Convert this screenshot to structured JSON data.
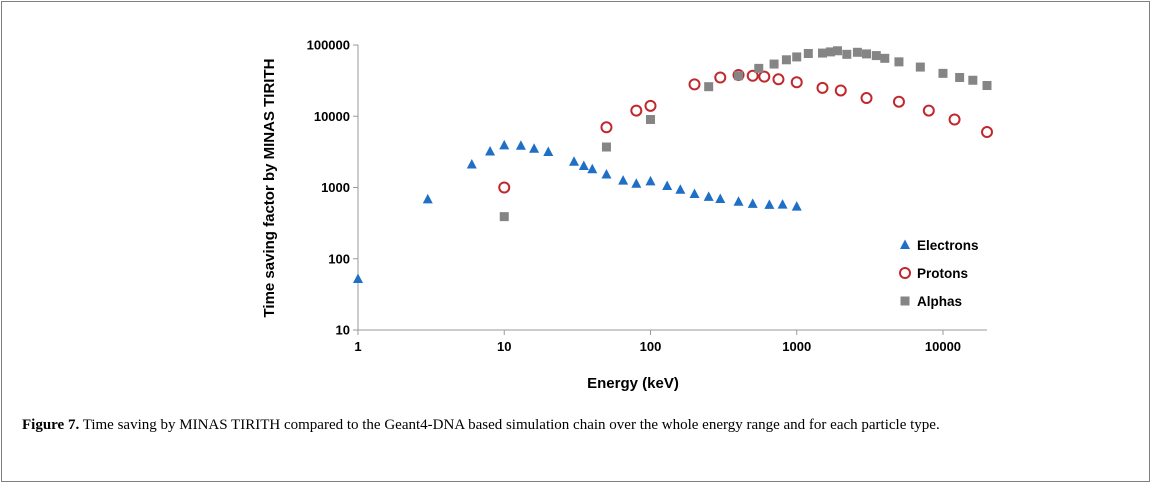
{
  "caption": {
    "label": "Figure 7.",
    "text": " Time saving by MINAS TIRITH compared to the Geant4-DNA based simulation chain over the whole energy range and for each particle type."
  },
  "chart_data": {
    "type": "scatter",
    "xlabel": "Energy (keV)",
    "ylabel": "Time saving factor by MINAS TIRITH",
    "xscale": "log",
    "yscale": "log",
    "xlim": [
      1,
      20000
    ],
    "ylim": [
      10,
      100000
    ],
    "x_ticks": [
      "1",
      "10",
      "100",
      "1000",
      "10000"
    ],
    "y_ticks": [
      "10",
      "100",
      "1000",
      "10000",
      "100000"
    ],
    "grid": false,
    "legend_position": "right",
    "series": [
      {
        "name": "Electrons",
        "marker": "triangle",
        "color": "#1f6fc5",
        "points": [
          [
            1,
            52
          ],
          [
            3,
            680
          ],
          [
            6,
            2100
          ],
          [
            8,
            3200
          ],
          [
            10,
            3900
          ],
          [
            13,
            3850
          ],
          [
            16,
            3500
          ],
          [
            20,
            3150
          ],
          [
            30,
            2300
          ],
          [
            35,
            2000
          ],
          [
            40,
            1800
          ],
          [
            50,
            1520
          ],
          [
            65,
            1250
          ],
          [
            80,
            1130
          ],
          [
            100,
            1220
          ],
          [
            130,
            1050
          ],
          [
            160,
            930
          ],
          [
            200,
            810
          ],
          [
            250,
            740
          ],
          [
            300,
            690
          ],
          [
            400,
            630
          ],
          [
            500,
            590
          ],
          [
            650,
            570
          ],
          [
            800,
            575
          ],
          [
            1000,
            540
          ]
        ]
      },
      {
        "name": "Protons",
        "marker": "open-circle",
        "color": "#c0282d",
        "points": [
          [
            10,
            1000
          ],
          [
            50,
            7000
          ],
          [
            80,
            12000
          ],
          [
            100,
            14000
          ],
          [
            200,
            28000
          ],
          [
            300,
            35000
          ],
          [
            400,
            38000
          ],
          [
            500,
            37000
          ],
          [
            600,
            36000
          ],
          [
            750,
            33000
          ],
          [
            1000,
            30000
          ],
          [
            1500,
            25000
          ],
          [
            2000,
            23000
          ],
          [
            3000,
            18000
          ],
          [
            5000,
            16000
          ],
          [
            8000,
            12000
          ],
          [
            12000,
            9000
          ],
          [
            20000,
            6000
          ]
        ]
      },
      {
        "name": "Alphas",
        "marker": "square",
        "color": "#858585",
        "points": [
          [
            10,
            390
          ],
          [
            50,
            3700
          ],
          [
            100,
            9000
          ],
          [
            250,
            26000
          ],
          [
            400,
            37000
          ],
          [
            550,
            47000
          ],
          [
            700,
            54000
          ],
          [
            850,
            62000
          ],
          [
            1000,
            68000
          ],
          [
            1200,
            76000
          ],
          [
            1500,
            77000
          ],
          [
            1700,
            80000
          ],
          [
            1900,
            83000
          ],
          [
            2200,
            74000
          ],
          [
            2600,
            79000
          ],
          [
            3000,
            75000
          ],
          [
            3500,
            71000
          ],
          [
            4000,
            65000
          ],
          [
            5000,
            58000
          ],
          [
            7000,
            49000
          ],
          [
            10000,
            40000
          ],
          [
            13000,
            35000
          ],
          [
            16000,
            32000
          ],
          [
            20000,
            27000
          ]
        ]
      }
    ]
  }
}
